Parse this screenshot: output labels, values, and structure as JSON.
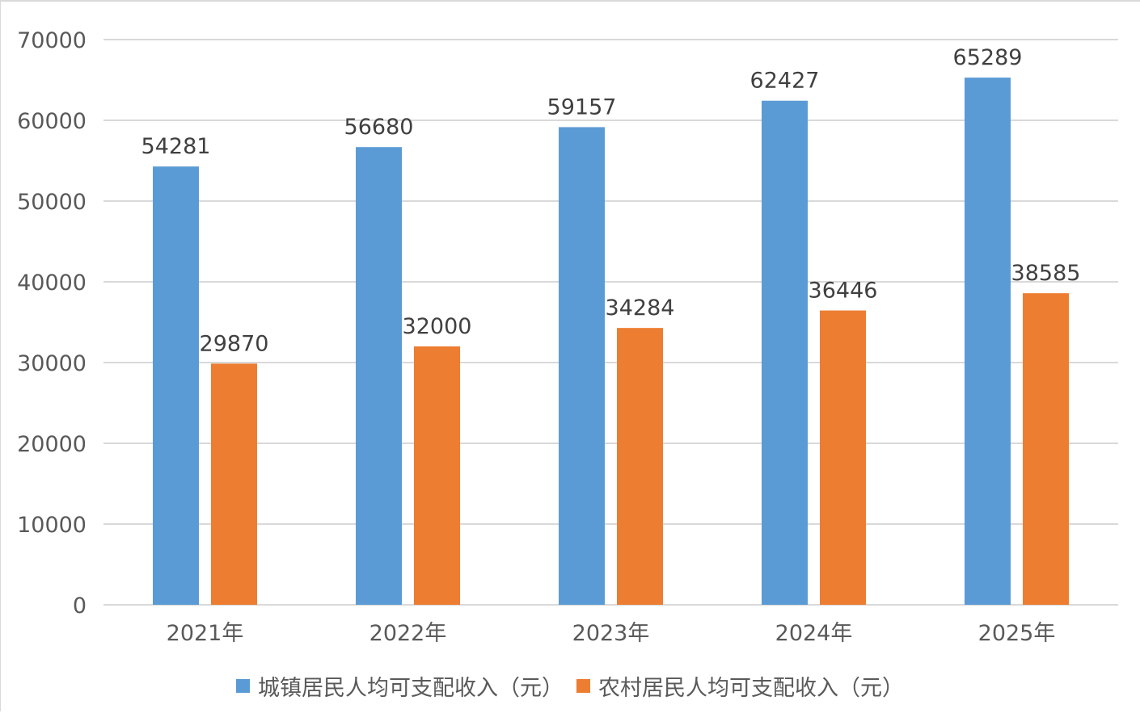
{
  "colors": {
    "urban": "#5b9bd5",
    "rural": "#ed7d31",
    "grid": "#d9d9d9",
    "text": "#595959",
    "label": "#404040"
  },
  "chart_data": {
    "type": "bar",
    "categories": [
      "2021年",
      "2022年",
      "2023年",
      "2024年",
      "2025年"
    ],
    "series": [
      {
        "name": "城镇居民人均可支配收入（元）",
        "values": [
          54281,
          56680,
          59157,
          62427,
          65289
        ]
      },
      {
        "name": "农村居民人均可支配收入（元）",
        "values": [
          29870,
          32000,
          34284,
          36446,
          38585
        ]
      }
    ],
    "ylim": [
      0,
      70000
    ],
    "yticks": [
      0,
      10000,
      20000,
      30000,
      40000,
      50000,
      60000,
      70000
    ],
    "grid": true,
    "legend": "bottom",
    "data_labels": true
  }
}
